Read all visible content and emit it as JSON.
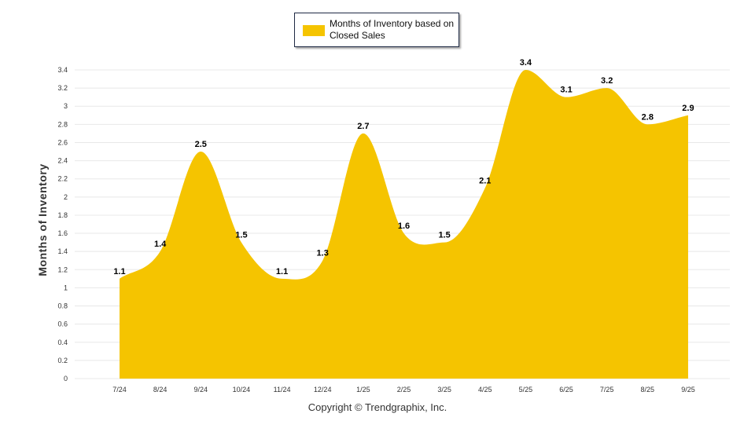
{
  "chart_data": {
    "type": "area",
    "title": "",
    "xlabel": "",
    "ylabel": "Months of Inventory",
    "ylim": [
      0,
      3.4
    ],
    "yticks": [
      "0",
      "0.2",
      "0.4",
      "0.6",
      "0.8",
      "1",
      "1.2",
      "1.4",
      "1.6",
      "1.8",
      "2",
      "2.2",
      "2.4",
      "2.6",
      "2.8",
      "3",
      "3.2",
      "3.4"
    ],
    "grid": true,
    "legend_position": "top-center",
    "categories": [
      "7/24",
      "8/24",
      "9/24",
      "10/24",
      "11/24",
      "12/24",
      "1/25",
      "2/25",
      "3/25",
      "4/25",
      "5/25",
      "6/25",
      "7/25",
      "8/25",
      "9/25"
    ],
    "series": [
      {
        "name": "Months of Inventory based on Closed Sales",
        "color": "#f5c400",
        "values": [
          1.1,
          1.4,
          2.5,
          1.5,
          1.1,
          1.3,
          2.7,
          1.6,
          1.5,
          2.1,
          3.4,
          3.1,
          3.2,
          2.8,
          2.9
        ]
      }
    ]
  },
  "legend": {
    "label": "Months of Inventory based on Closed Sales"
  },
  "footer": {
    "copyright": "Copyright © Trendgraphix, Inc."
  }
}
